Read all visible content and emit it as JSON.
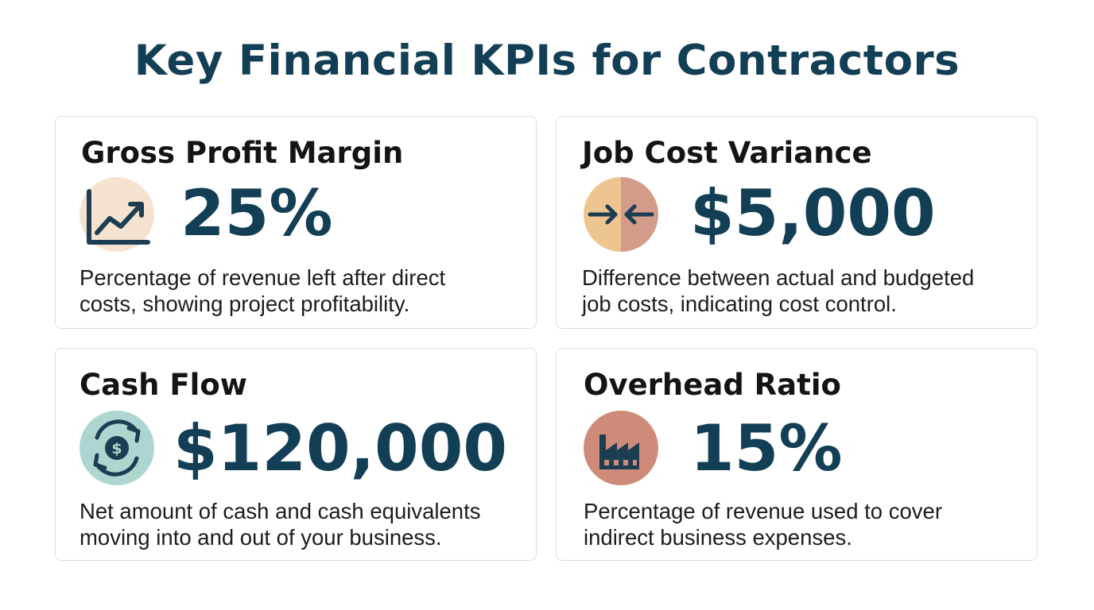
{
  "title": "Key Financial KPIs for Contractors",
  "kpis": [
    {
      "title": "Gross Profit Margin",
      "value": "25%",
      "icon": "trend-up-chart-icon",
      "description_line1": "Percentage of revenue left after direct",
      "description_line2": "costs, showing project profitability."
    },
    {
      "title": "Job Cost Variance",
      "value": "$5,000",
      "icon": "arrows-converge-icon",
      "description_line1": "Difference between actual and budgeted",
      "description_line2": "job costs, indicating cost control."
    },
    {
      "title": "Cash Flow",
      "value": "$120,000",
      "icon": "dollar-circular-arrows-icon",
      "description_line1": "Net amount of cash and cash equivalents",
      "description_line2": "moving into and out of your business."
    },
    {
      "title": "Overhead Ratio",
      "value": "15%",
      "icon": "factory-icon",
      "description_line1": "Percentage of revenue used to cover",
      "description_line2": "indirect business expenses."
    }
  ],
  "colors": {
    "title": "#123f55",
    "value": "#123f55",
    "icon_dark": "#1c3d52",
    "icon_bg_peach": "#f6e3cf",
    "icon_bg_left_orange": "#eec58e",
    "icon_bg_right_rose": "#d39b8a",
    "icon_bg_teal": "#aed6d0",
    "icon_bg_terracotta": "#cf8b79"
  }
}
